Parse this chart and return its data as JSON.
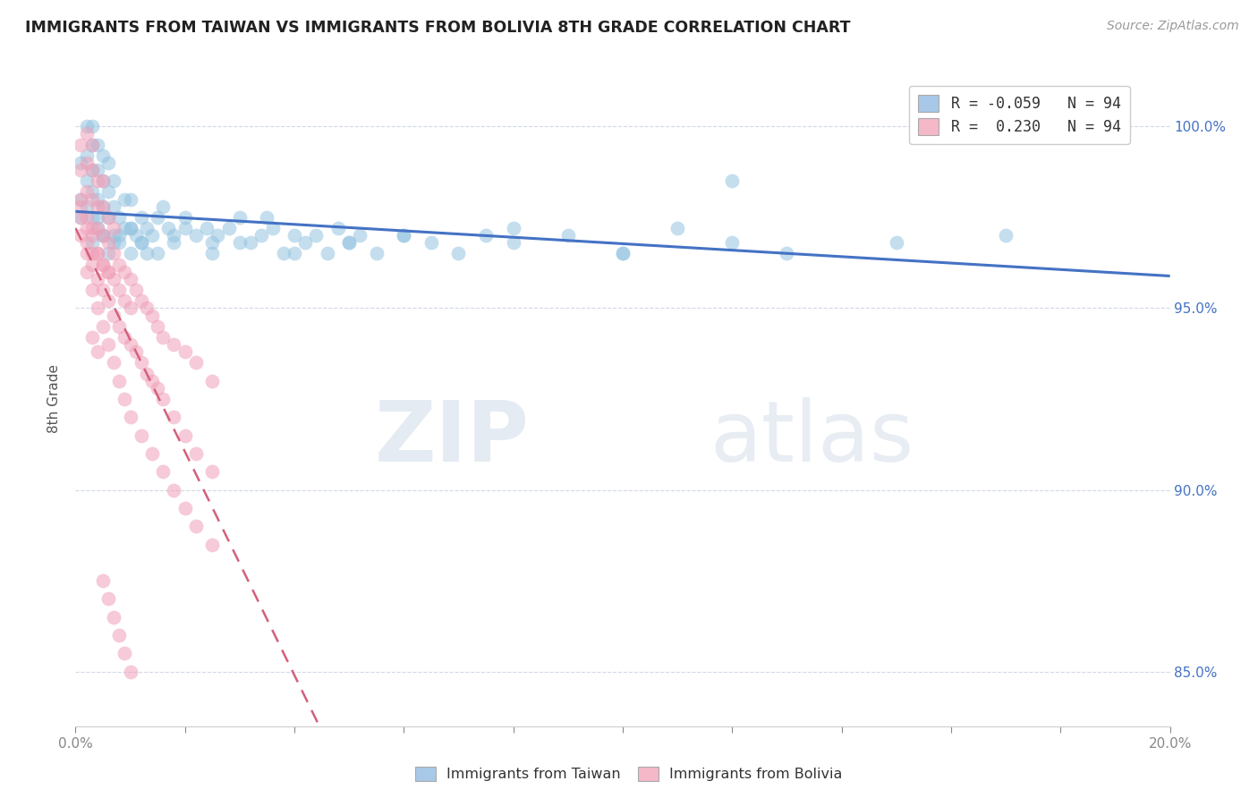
{
  "title": "IMMIGRANTS FROM TAIWAN VS IMMIGRANTS FROM BOLIVIA 8TH GRADE CORRELATION CHART",
  "source": "Source: ZipAtlas.com",
  "ylabel": "8th Grade",
  "taiwan_color": "#94C3E0",
  "bolivia_color": "#F0A0B8",
  "taiwan_line_color": "#4472C4",
  "bolivia_line_color": "#D4607A",
  "taiwan_R": -0.059,
  "taiwan_N": 94,
  "bolivia_R": 0.23,
  "bolivia_N": 94,
  "watermark_zip": "ZIP",
  "watermark_atlas": "atlas",
  "background_color": "#ffffff",
  "grid_color": "#d0d8e8",
  "legend_color_taiwan": "#a8c8e8",
  "legend_color_bolivia": "#f4b8c8",
  "y_min": 83.5,
  "y_max": 101.5,
  "x_min": 0.0,
  "x_max": 0.2,
  "y_ticks": [
    85.0,
    90.0,
    95.0,
    100.0
  ],
  "taiwan_x": [
    0.001,
    0.001,
    0.001,
    0.002,
    0.002,
    0.002,
    0.002,
    0.003,
    0.003,
    0.003,
    0.003,
    0.003,
    0.004,
    0.004,
    0.004,
    0.004,
    0.005,
    0.005,
    0.005,
    0.005,
    0.006,
    0.006,
    0.006,
    0.007,
    0.007,
    0.007,
    0.008,
    0.008,
    0.009,
    0.009,
    0.01,
    0.01,
    0.01,
    0.011,
    0.012,
    0.012,
    0.013,
    0.013,
    0.014,
    0.015,
    0.016,
    0.017,
    0.018,
    0.02,
    0.022,
    0.024,
    0.025,
    0.026,
    0.028,
    0.03,
    0.032,
    0.034,
    0.036,
    0.038,
    0.04,
    0.042,
    0.044,
    0.046,
    0.048,
    0.05,
    0.052,
    0.055,
    0.06,
    0.065,
    0.07,
    0.075,
    0.08,
    0.09,
    0.1,
    0.11,
    0.12,
    0.13,
    0.15,
    0.17,
    0.003,
    0.004,
    0.005,
    0.006,
    0.007,
    0.008,
    0.01,
    0.012,
    0.015,
    0.018,
    0.02,
    0.025,
    0.03,
    0.035,
    0.04,
    0.05,
    0.06,
    0.08,
    0.1,
    0.12
  ],
  "taiwan_y": [
    97.5,
    98.0,
    99.0,
    97.8,
    98.5,
    99.2,
    100.0,
    97.5,
    98.2,
    98.8,
    99.5,
    100.0,
    97.2,
    98.0,
    98.8,
    99.5,
    97.0,
    97.8,
    98.5,
    99.2,
    97.5,
    98.2,
    99.0,
    97.0,
    97.8,
    98.5,
    96.8,
    97.5,
    97.2,
    98.0,
    96.5,
    97.2,
    98.0,
    97.0,
    96.8,
    97.5,
    96.5,
    97.2,
    97.0,
    97.5,
    97.8,
    97.2,
    96.8,
    97.5,
    97.0,
    97.2,
    96.8,
    97.0,
    97.2,
    97.5,
    96.8,
    97.0,
    97.2,
    96.5,
    97.0,
    96.8,
    97.0,
    96.5,
    97.2,
    96.8,
    97.0,
    96.5,
    97.0,
    96.8,
    96.5,
    97.0,
    96.8,
    97.0,
    96.5,
    97.2,
    98.5,
    96.5,
    96.8,
    97.0,
    96.8,
    97.5,
    97.0,
    96.5,
    96.8,
    97.0,
    97.2,
    96.8,
    96.5,
    97.0,
    97.2,
    96.5,
    96.8,
    97.5,
    96.5,
    96.8,
    97.0,
    97.2,
    96.5,
    96.8
  ],
  "bolivia_x": [
    0.001,
    0.001,
    0.001,
    0.001,
    0.002,
    0.002,
    0.002,
    0.002,
    0.002,
    0.003,
    0.003,
    0.003,
    0.003,
    0.003,
    0.004,
    0.004,
    0.004,
    0.004,
    0.005,
    0.005,
    0.005,
    0.005,
    0.006,
    0.006,
    0.006,
    0.007,
    0.007,
    0.007,
    0.008,
    0.008,
    0.009,
    0.009,
    0.01,
    0.01,
    0.011,
    0.012,
    0.013,
    0.014,
    0.015,
    0.016,
    0.018,
    0.02,
    0.022,
    0.025,
    0.001,
    0.001,
    0.002,
    0.002,
    0.003,
    0.003,
    0.004,
    0.004,
    0.005,
    0.005,
    0.006,
    0.006,
    0.007,
    0.008,
    0.009,
    0.01,
    0.011,
    0.012,
    0.013,
    0.014,
    0.015,
    0.016,
    0.018,
    0.02,
    0.022,
    0.025,
    0.002,
    0.003,
    0.004,
    0.005,
    0.006,
    0.007,
    0.008,
    0.009,
    0.01,
    0.012,
    0.014,
    0.016,
    0.018,
    0.02,
    0.022,
    0.025,
    0.003,
    0.004,
    0.005,
    0.006,
    0.007,
    0.008,
    0.009,
    0.01
  ],
  "bolivia_y": [
    97.5,
    98.0,
    98.8,
    99.5,
    96.8,
    97.5,
    98.2,
    99.0,
    99.8,
    96.5,
    97.2,
    98.0,
    98.8,
    99.5,
    96.5,
    97.2,
    97.8,
    98.5,
    96.2,
    97.0,
    97.8,
    98.5,
    96.0,
    96.8,
    97.5,
    95.8,
    96.5,
    97.2,
    95.5,
    96.2,
    95.2,
    96.0,
    95.0,
    95.8,
    95.5,
    95.2,
    95.0,
    94.8,
    94.5,
    94.2,
    94.0,
    93.8,
    93.5,
    93.0,
    97.0,
    97.8,
    96.5,
    97.2,
    96.2,
    97.0,
    95.8,
    96.5,
    95.5,
    96.2,
    95.2,
    96.0,
    94.8,
    94.5,
    94.2,
    94.0,
    93.8,
    93.5,
    93.2,
    93.0,
    92.8,
    92.5,
    92.0,
    91.5,
    91.0,
    90.5,
    96.0,
    95.5,
    95.0,
    94.5,
    94.0,
    93.5,
    93.0,
    92.5,
    92.0,
    91.5,
    91.0,
    90.5,
    90.0,
    89.5,
    89.0,
    88.5,
    94.2,
    93.8,
    87.5,
    87.0,
    86.5,
    86.0,
    85.5,
    85.0
  ]
}
